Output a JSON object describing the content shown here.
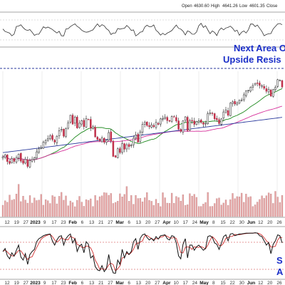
{
  "header": {
    "open_label": "Open",
    "open_value": "4630.60",
    "high_label": "High",
    "high_value": "4641.26",
    "low_label": "Low",
    "low_value": "4601.35",
    "close_label": "Close"
  },
  "annotations": {
    "top_line1": "Next Area Of",
    "top_line2": "Upside Resis",
    "bottom_line1": "S",
    "bottom_line2": "A"
  },
  "colors": {
    "up_candle": "#ffffff",
    "down_candle": "#c0304a",
    "wick": "#222222",
    "ma_fast": "#1f8a1f",
    "ma_mid": "#d62f9a",
    "ma_slow": "#2a3a9c",
    "volume": "#e6a3a3",
    "stoch_k": "#111111",
    "stoch_d": "#d03030",
    "grid": "#d9d9d9",
    "annotation": "#1a2ec8"
  },
  "chart_data": {
    "type": "line",
    "x_tick_labels": [
      "12",
      "19",
      "27",
      "2023",
      "9",
      "17",
      "23",
      "Feb",
      "6",
      "13",
      "21",
      "27",
      "Mar",
      "6",
      "13",
      "20",
      "27",
      "Apr",
      "10",
      "17",
      "24",
      "May",
      "8",
      "15",
      "22",
      "30",
      "Jun",
      "12",
      "20",
      "26"
    ],
    "x_tick_bold": [
      "2023",
      "Feb",
      "Mar",
      "Apr",
      "May",
      "Jun"
    ],
    "price": {
      "closes": [
        3858,
        3872,
        3821,
        3807,
        3844,
        3822,
        3852,
        3878,
        3824,
        3808,
        3839,
        3783,
        3829,
        3839,
        3852,
        3896,
        3919,
        3928,
        3970,
        3983,
        3999,
        4019,
        3990,
        3972,
        4016,
        4060,
        4071,
        4017,
        4076,
        4119,
        4179,
        4111,
        4164,
        4081,
        4118,
        4137,
        4091,
        4154,
        4147,
        4079,
        4090,
        4012,
        3991,
        3981,
        4003,
        3970,
        3987,
        4045,
        3981,
        3861,
        3855,
        3920,
        3891,
        3960,
        3916,
        3951,
        3937,
        3948,
        4002,
        4027,
        3971,
        4050,
        4109,
        4124,
        4100,
        4090,
        4105,
        4091,
        4124,
        4109,
        4151,
        4154,
        4165,
        4138,
        4133,
        4169,
        4168,
        4135,
        4071,
        4055,
        4135,
        4167,
        4061,
        4138,
        4137,
        4109,
        4130,
        4136,
        4124,
        4110,
        4116,
        4192,
        4198,
        4191,
        4151,
        4145,
        4115,
        4151,
        4205,
        4221,
        4179,
        4273,
        4283,
        4267,
        4273,
        4293,
        4298,
        4338,
        4369,
        4372,
        4396,
        4409,
        4425,
        4426,
        4410,
        4409,
        4388,
        4365,
        4381,
        4328,
        4378,
        4396,
        4455,
        4450,
        4398
      ]
    },
    "oscillator": {
      "k": [
        55,
        62,
        45,
        38,
        52,
        44,
        58,
        70,
        42,
        35,
        50,
        25,
        48,
        55,
        60,
        78,
        85,
        88,
        92,
        94,
        95,
        96,
        80,
        70,
        82,
        90,
        92,
        70,
        85,
        92,
        96,
        75,
        85,
        55,
        68,
        72,
        52,
        78,
        72,
        40,
        45,
        20,
        12,
        10,
        22,
        8,
        15,
        48,
        20,
        5,
        4,
        35,
        25,
        60,
        40,
        55,
        48,
        55,
        78,
        85,
        60,
        86,
        94,
        96,
        88,
        82,
        86,
        80,
        90,
        84,
        92,
        93,
        94,
        85,
        82,
        92,
        90,
        75,
        45,
        38,
        72,
        85,
        40,
        70,
        70,
        58,
        66,
        70,
        64,
        58,
        62,
        90,
        92,
        88,
        75,
        72,
        60,
        74,
        90,
        94,
        80,
        96,
        97,
        92,
        94,
        96,
        96,
        97,
        98,
        98,
        98,
        98,
        99,
        98,
        92,
        90,
        80,
        70,
        76,
        50,
        72,
        80,
        94,
        92,
        75
      ],
      "levels": [
        80,
        20
      ]
    },
    "moving_averages": [
      {
        "period": 20
      },
      {
        "period": 50
      },
      {
        "period": 200
      }
    ]
  }
}
